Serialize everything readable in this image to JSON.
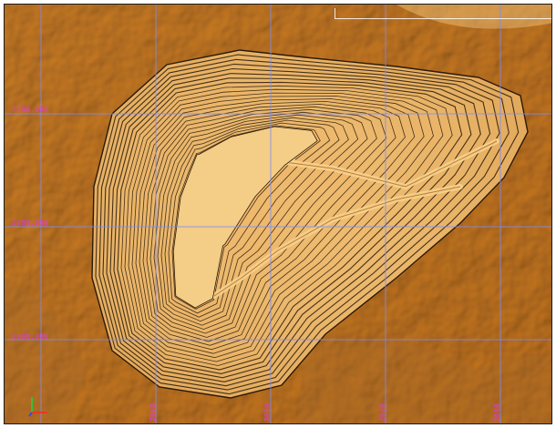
{
  "viewer": {
    "grid_labels_y": [
      "2000.000",
      "2000.000",
      "2000.000"
    ],
    "grid_labels_x": [
      "2000",
      "2000",
      "2000",
      "2000"
    ],
    "colors": {
      "terrain_base": "#c68a3a",
      "terrain_light": "#f0c070",
      "terrain_dark": "#8a5418",
      "pit_fill": "#e9b466",
      "bench_line": "#2a1a0a",
      "ramp": "#f6d38c",
      "grid_line": "#7a8cff",
      "grid_label": "#e23bd6"
    },
    "icons": [
      "axis-triad-icon"
    ]
  }
}
